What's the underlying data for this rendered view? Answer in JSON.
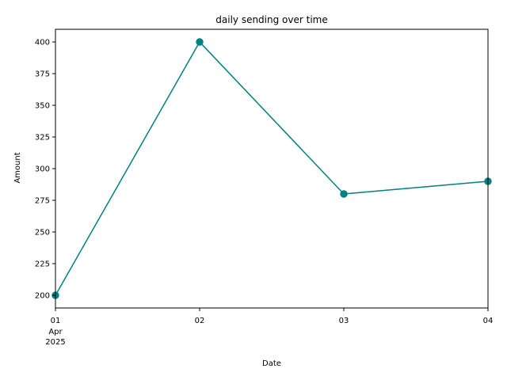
{
  "chart_data": {
    "type": "line",
    "title": "daily sending over time",
    "xlabel": "Date",
    "ylabel": "Amount",
    "x": [
      "2025-04-01",
      "2025-04-02",
      "2025-04-03",
      "2025-04-04"
    ],
    "x_tick_labels": [
      "01",
      "02",
      "03",
      "04"
    ],
    "x_tick_sublabels": [
      "Apr\n2025",
      "",
      "",
      ""
    ],
    "series": [
      {
        "values": [
          200,
          400,
          280,
          290
        ],
        "color": "#008080",
        "marker": "circle"
      }
    ],
    "yticks": [
      200,
      225,
      250,
      275,
      300,
      325,
      350,
      375,
      400
    ],
    "ylim": [
      190,
      410
    ],
    "xlim": [
      "2025-04-01",
      "2025-04-04"
    ],
    "grid": false,
    "legend": "none"
  }
}
